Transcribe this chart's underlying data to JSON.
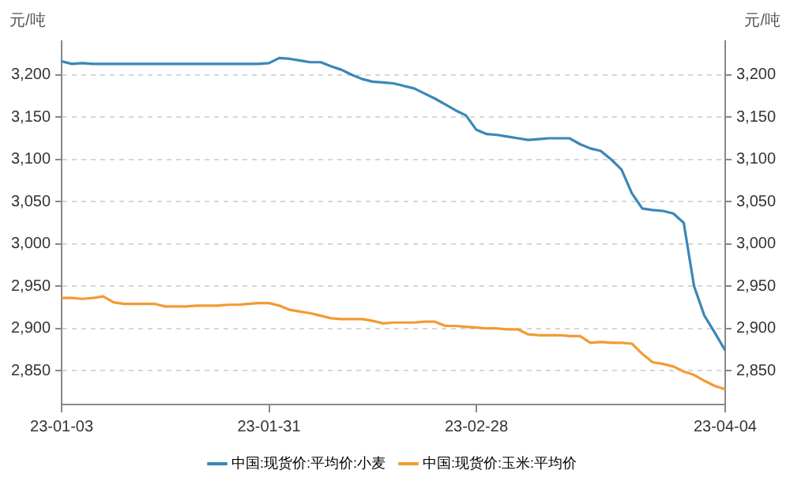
{
  "chart_data": {
    "type": "line",
    "ylabel": "元/吨",
    "y2label": "元/吨",
    "categories": [
      "23-01-03",
      null,
      null,
      null,
      null,
      null,
      null,
      null,
      null,
      null,
      null,
      null,
      null,
      null,
      null,
      null,
      null,
      null,
      null,
      null,
      "23-01-31",
      null,
      null,
      null,
      null,
      null,
      null,
      null,
      null,
      null,
      null,
      null,
      null,
      null,
      null,
      null,
      null,
      null,
      null,
      null,
      "23-02-28",
      null,
      null,
      null,
      null,
      null,
      null,
      null,
      null,
      null,
      null,
      null,
      null,
      null,
      null,
      null,
      null,
      null,
      null,
      null,
      null,
      null,
      null,
      null,
      "23-04-04"
    ],
    "series": [
      {
        "name": "中国:现货价:平均价:小麦",
        "color": "#3a87b8",
        "values": [
          3216,
          3213,
          3214,
          3213,
          3213,
          3213,
          3213,
          3213,
          3213,
          3213,
          3213,
          3213,
          3213,
          3213,
          3213,
          3213,
          3213,
          3213,
          3213,
          3213,
          3214,
          3220,
          3219,
          3217,
          3215,
          3215,
          3210,
          3206,
          3200,
          3195,
          3192,
          3191,
          3190,
          3187,
          3184,
          3178,
          3172,
          3165,
          3158,
          3152,
          3135,
          3130,
          3129,
          3127,
          3125,
          3123,
          3124,
          3125,
          3125,
          3125,
          3118,
          3113,
          3110,
          3100,
          3088,
          3060,
          3042,
          3040,
          3039,
          3036,
          3025,
          2950,
          2915,
          2895,
          2874
        ]
      },
      {
        "name": "中国:现货价:玉米:平均价",
        "color": "#f39a34",
        "values": [
          2936,
          2936,
          2935,
          2936,
          2938,
          2931,
          2929,
          2929,
          2929,
          2929,
          2926,
          2926,
          2926,
          2927,
          2927,
          2927,
          2928,
          2928,
          2929,
          2930,
          2930,
          2927,
          2922,
          2920,
          2918,
          2915,
          2912,
          2911,
          2911,
          2911,
          2909,
          2906,
          2907,
          2907,
          2907,
          2908,
          2908,
          2903,
          2903,
          2902,
          2901,
          2900,
          2900,
          2899,
          2899,
          2893,
          2892,
          2892,
          2892,
          2891,
          2891,
          2883,
          2884,
          2883,
          2883,
          2882,
          2870,
          2860,
          2858,
          2855,
          2849,
          2845,
          2838,
          2832,
          2828
        ]
      }
    ],
    "ylim": [
      2810,
      3240
    ],
    "yticks": [
      {
        "value": 2850,
        "label": "2,850"
      },
      {
        "value": 2900,
        "label": "2,900"
      },
      {
        "value": 2950,
        "label": "2,950"
      },
      {
        "value": 3000,
        "label": "3,000"
      },
      {
        "value": 3050,
        "label": "3,050"
      },
      {
        "value": 3100,
        "label": "3,100"
      },
      {
        "value": 3150,
        "label": "3,150"
      },
      {
        "value": 3200,
        "label": "3,200"
      }
    ],
    "y2lim": [
      2810,
      3240
    ],
    "y2ticks": [
      {
        "value": 2850,
        "label": "2,850"
      },
      {
        "value": 2900,
        "label": "2,900"
      },
      {
        "value": 2950,
        "label": "2,950"
      },
      {
        "value": 3000,
        "label": "3,000"
      },
      {
        "value": 3050,
        "label": "3,050"
      },
      {
        "value": 3100,
        "label": "3,100"
      },
      {
        "value": 3150,
        "label": "3,150"
      },
      {
        "value": 3200,
        "label": "3,200"
      }
    ],
    "grid": "y",
    "legend": "bottom",
    "marker": "none",
    "line_style": "solid"
  }
}
